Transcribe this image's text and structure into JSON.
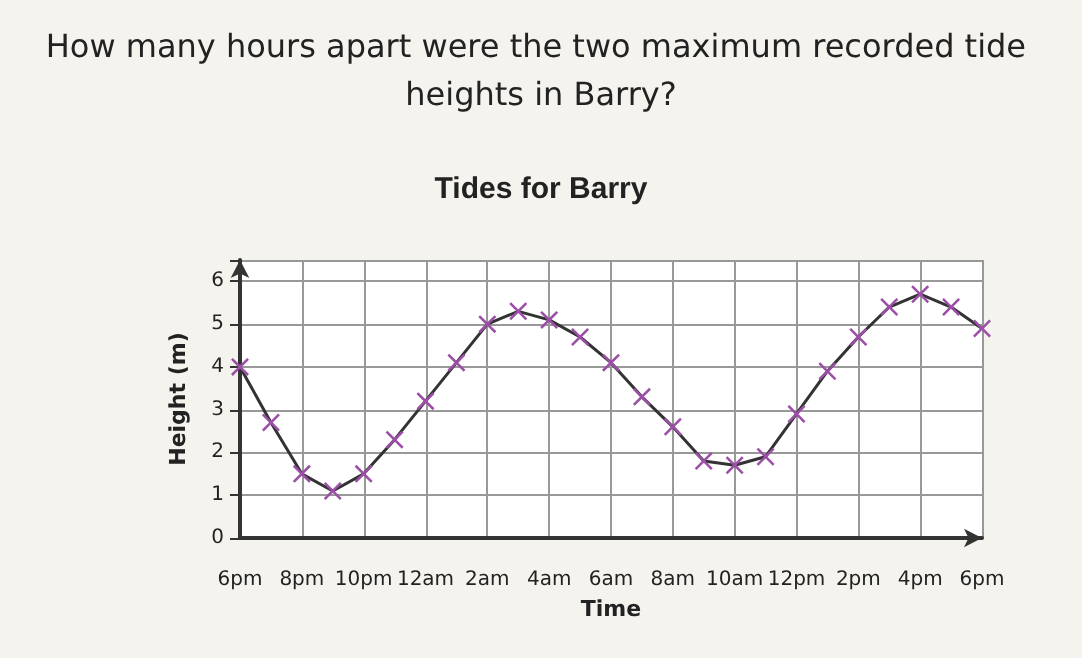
{
  "chart_data": {
    "type": "line",
    "title": "Tides for Barry",
    "annotations": [
      "How many hours apart were the two maximum recorded tide heights in Barry?"
    ],
    "xlabel": "Time",
    "ylabel": "Height (m)",
    "categories": [
      "6pm",
      null,
      "8pm",
      null,
      "10pm",
      null,
      "12am",
      null,
      "2am",
      null,
      "4am",
      null,
      "6am",
      null,
      "8am",
      null,
      "10am",
      null,
      "12pm",
      null,
      "2pm",
      null,
      "4pm",
      null,
      "6pm"
    ],
    "series": [
      {
        "color": "#9b4fa6",
        "values": [
          4.0,
          2.7,
          1.5,
          1.1,
          1.5,
          2.3,
          3.2,
          4.1,
          5.0,
          5.3,
          5.1,
          4.7,
          4.1,
          3.3,
          2.6,
          1.8,
          1.7,
          1.9,
          2.9,
          3.9,
          4.7,
          5.4,
          5.7,
          5.4,
          4.9
        ]
      }
    ],
    "ylim": [
      0,
      6.5
    ],
    "yticks": [
      0,
      1,
      2,
      3,
      4,
      5,
      6
    ],
    "grid": true,
    "marker": "cross",
    "line_style": "solid"
  }
}
